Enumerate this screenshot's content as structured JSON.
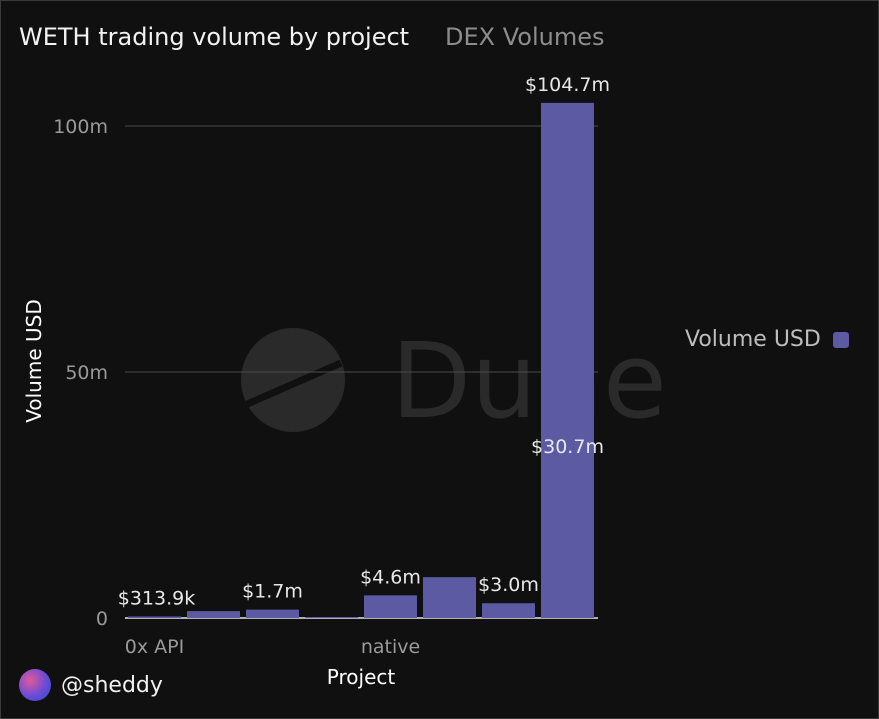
{
  "header": {
    "title": "WETH trading volume by project",
    "subtitle": "DEX Volumes"
  },
  "watermark": {
    "text": "Dune"
  },
  "author": {
    "handle": "@sheddy",
    "avatar": "avatar-gradient"
  },
  "legend": {
    "label": "Volume USD",
    "color": "#5b5aa3",
    "position": "right"
  },
  "chart_data": {
    "type": "bar",
    "xlabel": "Project",
    "ylabel": "Volume USD",
    "ylim": [
      0,
      100000000
    ],
    "yticks": [
      0,
      50000000,
      100000000
    ],
    "ytick_labels": [
      "0",
      "50m",
      "100m"
    ],
    "grid": true,
    "categories": [
      "0x API",
      "",
      "",
      "",
      "native",
      "",
      "",
      ""
    ],
    "xtick_labels": [
      "0x API",
      "native"
    ],
    "series": [
      {
        "name": "Volume USD",
        "color": "#5b5aa3",
        "values": [
          313900,
          1400000,
          1700000,
          80000,
          4600000,
          8300000,
          3000000,
          104700000
        ],
        "labels": [
          "$313.9k",
          "",
          "$1.7m",
          "",
          "$4.6m",
          "",
          "$3.0m",
          "$104.7m"
        ]
      }
    ],
    "annotations": [
      "$30.7m"
    ]
  }
}
